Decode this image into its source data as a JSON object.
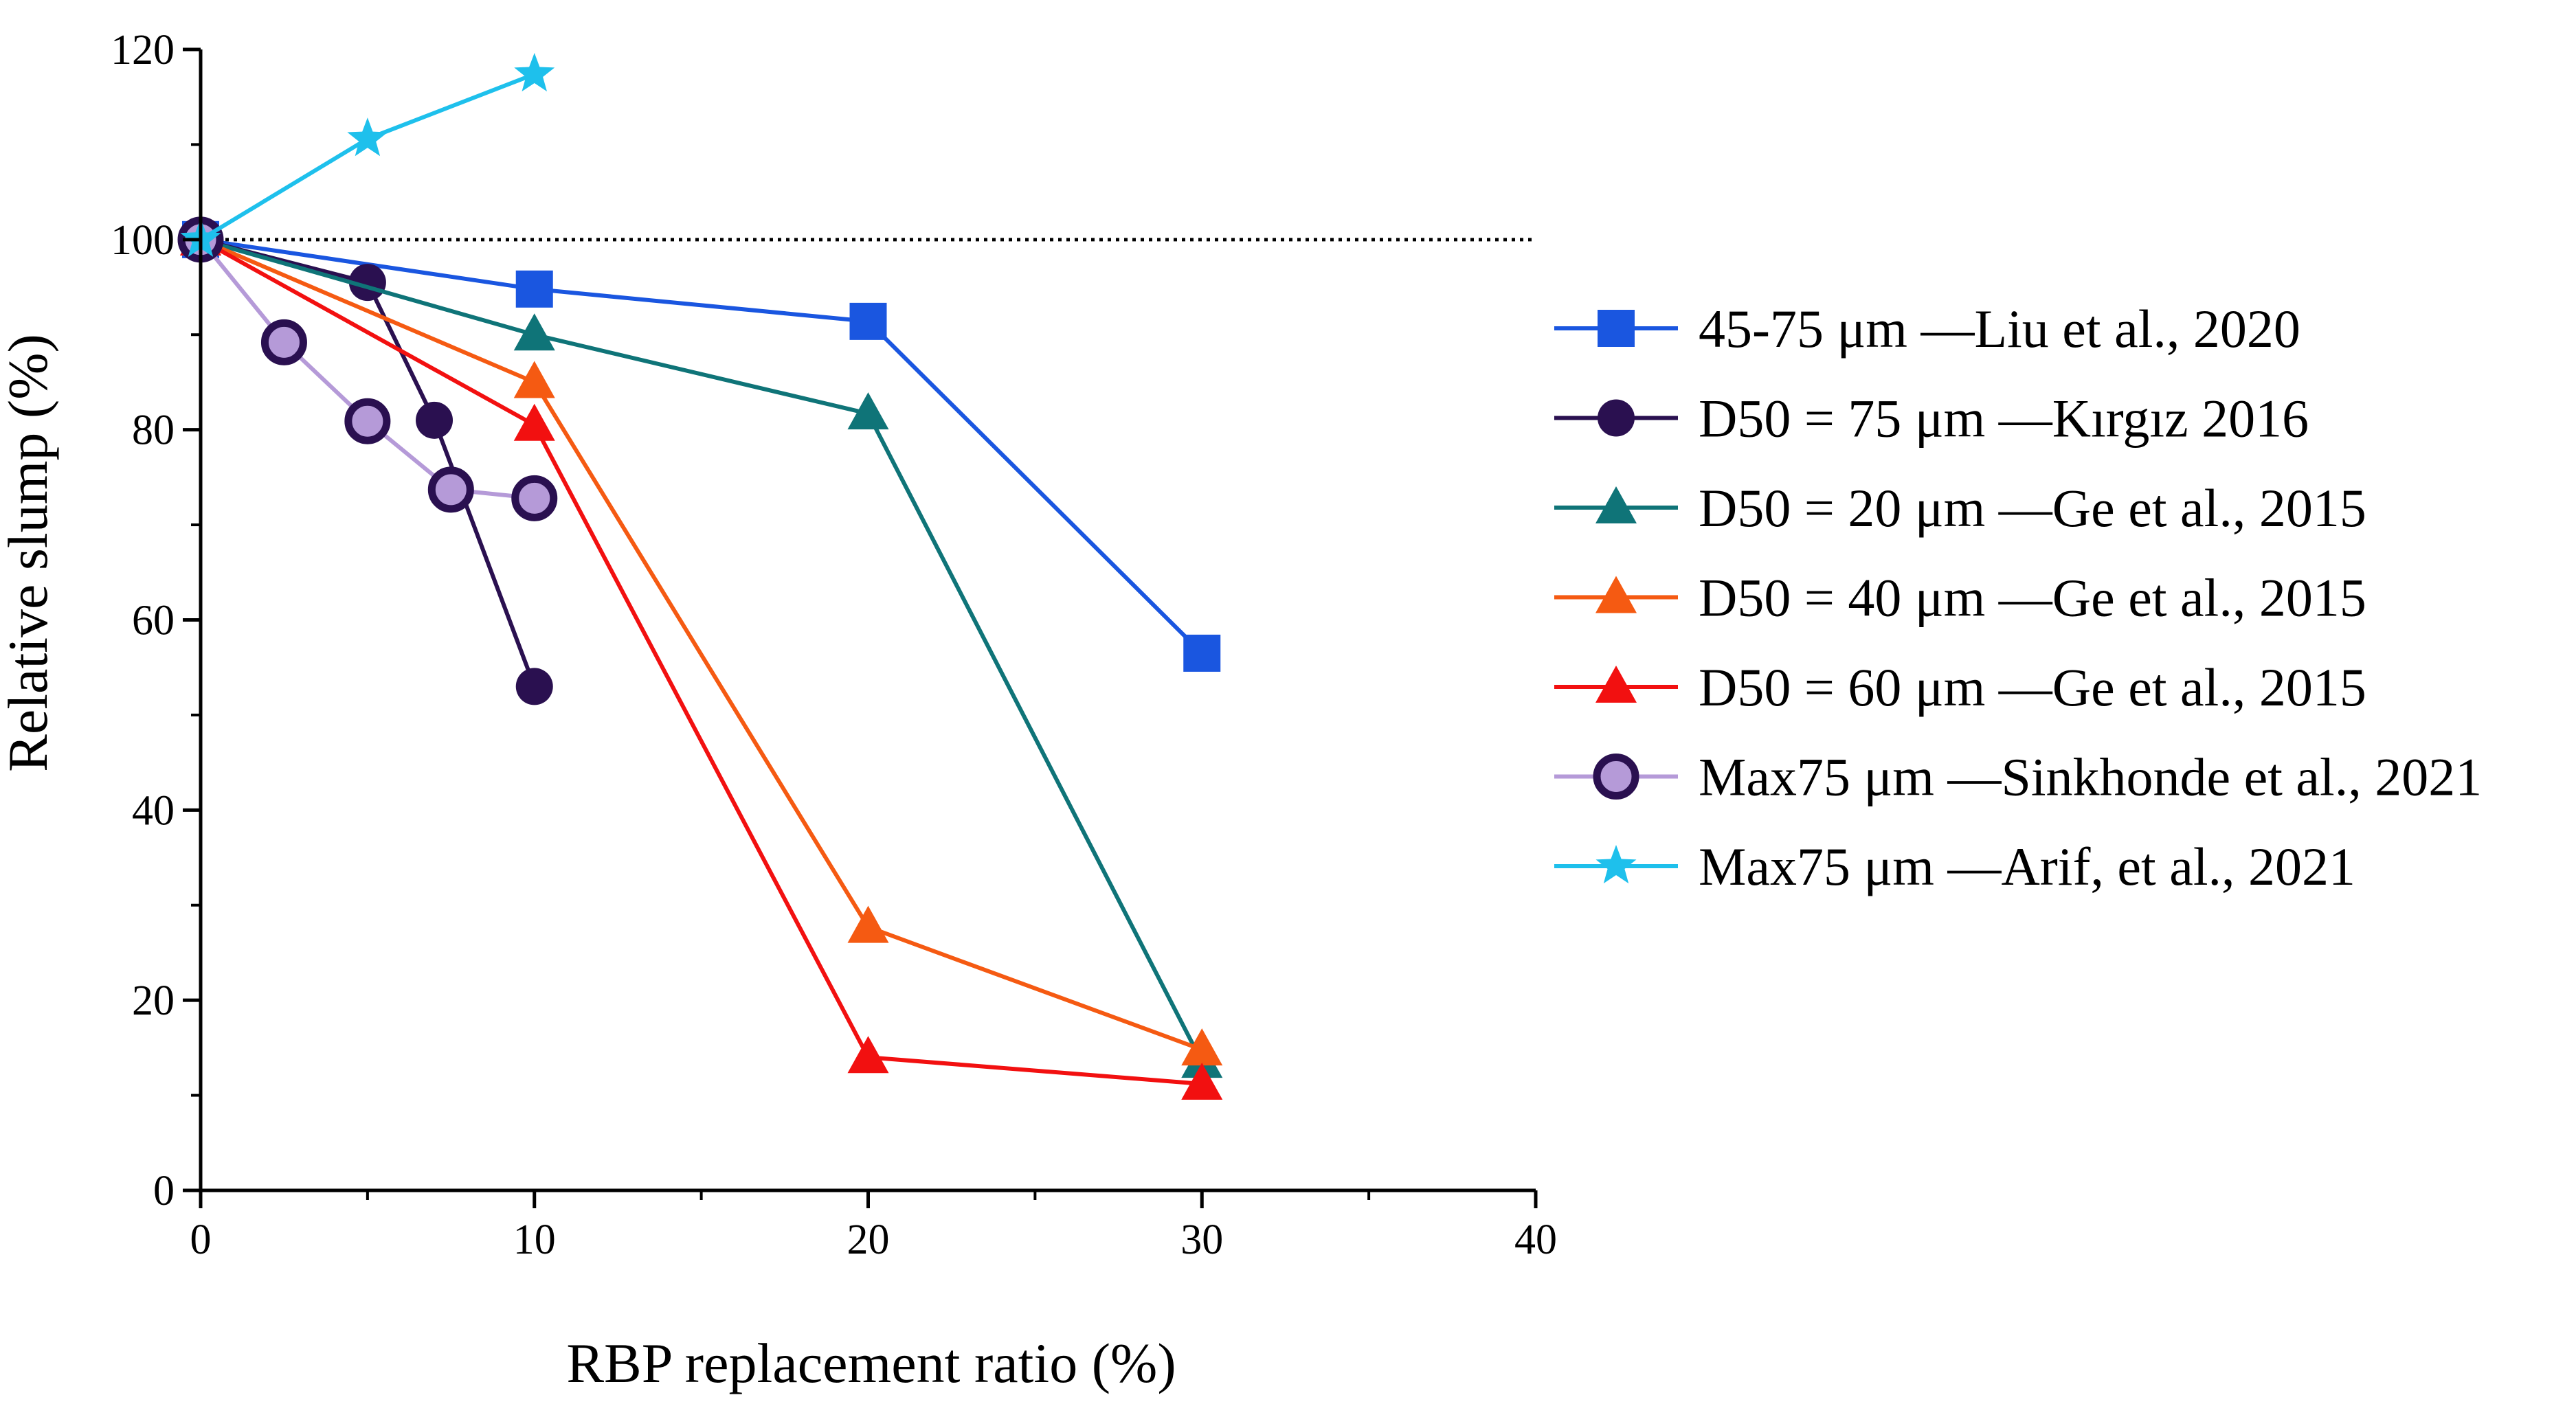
{
  "chart_data": {
    "type": "line",
    "title": "",
    "xlabel": "RBP replacement ratio (%)",
    "ylabel": "Relative slump (%)",
    "xlim": [
      0,
      40
    ],
    "ylim": [
      0,
      120
    ],
    "xticks": [
      0,
      10,
      20,
      30,
      40
    ],
    "yticks": [
      0,
      20,
      40,
      60,
      80,
      100,
      120
    ],
    "x_tick_labels": [
      "0",
      "10",
      "20",
      "30",
      "40"
    ],
    "y_tick_labels": [
      "0",
      "20",
      "40",
      "60",
      "80",
      "100",
      "120"
    ],
    "reference_line": {
      "y": 100,
      "style": "dotted"
    },
    "legend_position": "right",
    "series": [
      {
        "name": "45-75 μm —Liu et al., 2020",
        "color": "#1a56e0",
        "marker": "square",
        "x": [
          0,
          10,
          20,
          30
        ],
        "y": [
          100,
          94.8,
          91.4,
          56.5
        ]
      },
      {
        "name": "D50 = 75 μm —Kırgız 2016",
        "color": "#2a1050",
        "marker": "circle",
        "x": [
          0,
          5,
          7,
          10
        ],
        "y": [
          100,
          95.5,
          81,
          53
        ]
      },
      {
        "name": "D50 = 20 μm —Ge et al., 2015",
        "color": "#0f7478",
        "marker": "triangle",
        "x": [
          0,
          10,
          20,
          30
        ],
        "y": [
          100,
          90,
          81.7,
          13.5
        ]
      },
      {
        "name": "D50 = 40 μm —Ge et al., 2015",
        "color": "#f55a12",
        "marker": "triangle",
        "x": [
          0,
          10,
          20,
          30
        ],
        "y": [
          100,
          85,
          27.7,
          14.8
        ]
      },
      {
        "name": "D50 = 60 μm —Ge et al., 2015",
        "color": "#f21010",
        "marker": "triangle",
        "x": [
          0,
          10,
          20,
          30
        ],
        "y": [
          100,
          80.5,
          14,
          11.2
        ]
      },
      {
        "name": "Max75 μm —Sinkhonde et al., 2021",
        "color": "#b59ad8",
        "marker": "ring",
        "x": [
          0,
          2.5,
          5,
          7.5,
          10
        ],
        "y": [
          100,
          89.2,
          80.9,
          73.7,
          72.8
        ]
      },
      {
        "name": "Max75 μm —Arif, et al., 2021",
        "color": "#1ec0ec",
        "marker": "star",
        "x": [
          0,
          5,
          10
        ],
        "y": [
          100,
          110.6,
          117.4
        ]
      }
    ]
  }
}
